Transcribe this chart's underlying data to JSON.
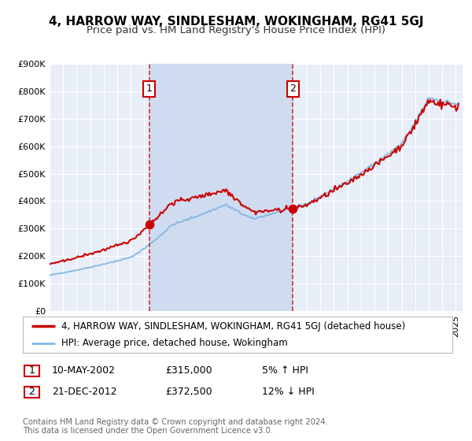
{
  "title": "4, HARROW WAY, SINDLESHAM, WOKINGHAM, RG41 5GJ",
  "subtitle": "Price paid vs. HM Land Registry's House Price Index (HPI)",
  "background_color": "#ffffff",
  "plot_background_color": "#e8eef8",
  "grid_color": "#ffffff",
  "ylim": [
    0,
    900000
  ],
  "yticks": [
    0,
    100000,
    200000,
    300000,
    400000,
    500000,
    600000,
    700000,
    800000,
    900000
  ],
  "ytick_labels": [
    "£0",
    "£100K",
    "£200K",
    "£300K",
    "£400K",
    "£500K",
    "£600K",
    "£700K",
    "£800K",
    "£900K"
  ],
  "sale1_date": 2002.36,
  "sale1_price": 315000,
  "sale2_date": 2012.97,
  "sale2_price": 372500,
  "shade_color": "#cfdcf0",
  "sale_line_color": "#cc0000",
  "hpi_line_color": "#85b8e0",
  "sale_marker_color": "#cc0000",
  "legend1_label": "4, HARROW WAY, SINDLESHAM, WOKINGHAM, RG41 5GJ (detached house)",
  "legend2_label": "HPI: Average price, detached house, Wokingham",
  "footer": "Contains HM Land Registry data © Crown copyright and database right 2024.\nThis data is licensed under the Open Government Licence v3.0.",
  "title_fontsize": 11,
  "subtitle_fontsize": 9.5,
  "tick_fontsize": 8,
  "legend_fontsize": 8.5,
  "annotation_fontsize": 9
}
